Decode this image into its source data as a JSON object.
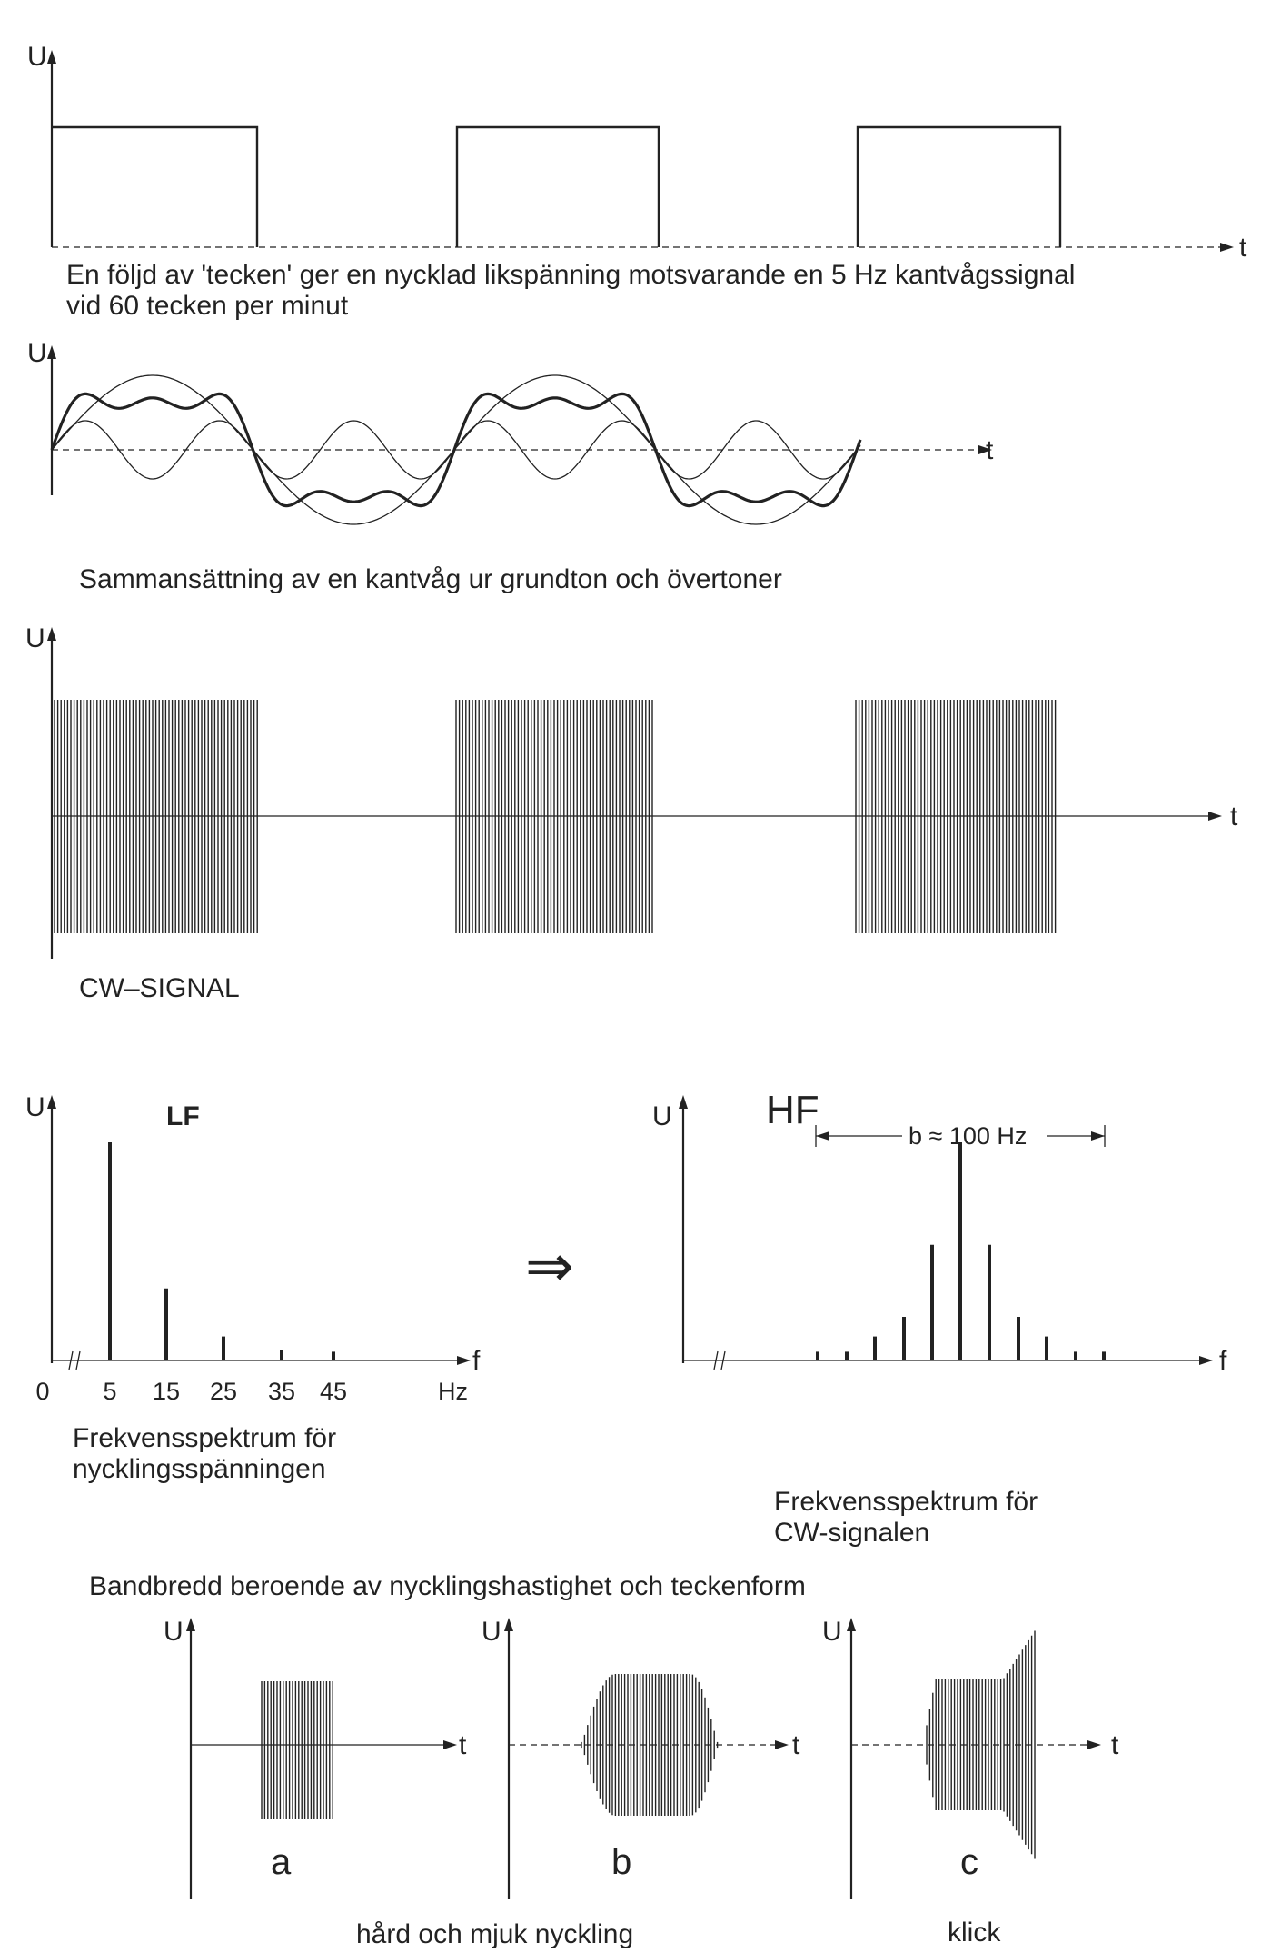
{
  "axis_labels": {
    "u": "U",
    "t": "t",
    "f": "f",
    "hz": "Hz"
  },
  "panel1": {
    "caption_line1": "En följd av  'tecken'  ger en nycklad likspänning motsvarande en 5 Hz kantvågssignal",
    "caption_line2": "vid 60 tecken per minut"
  },
  "panel2": {
    "caption": "Sammansättning av en kantvåg ur grundton och övertoner"
  },
  "panel3": {
    "caption": "CW–SIGNAL"
  },
  "panel4": {
    "lf_label": "LF",
    "hf_label": "HF",
    "bandwidth_label": "b ≈ 100 Hz",
    "arrow_symbol": "⇒",
    "lf_caption_line1": "Frekvensspektrum för",
    "lf_caption_line2": "nycklingsspänningen",
    "hf_caption_line1": "Frekvensspektrum för",
    "hf_caption_line2": "CW-signalen",
    "lf_ticks": [
      "0",
      "5",
      "15",
      "25",
      "35",
      "45"
    ]
  },
  "panel5": {
    "title": "Bandbredd beroende av nycklingshastighet och teckenform",
    "label_a": "a",
    "label_b": "b",
    "label_c": "c",
    "caption_soft": "hård och mjuk nyckling",
    "caption_click": "klick"
  },
  "chart_data": [
    {
      "type": "bar",
      "name": "LF",
      "categories": [
        "5",
        "15",
        "25",
        "35",
        "45"
      ],
      "values": [
        1.0,
        0.33,
        0.11,
        0.05,
        0.04
      ],
      "xlabel": "Hz",
      "ylabel": "U"
    },
    {
      "type": "bar",
      "name": "HF",
      "values": [
        0.04,
        0.04,
        0.11,
        0.2,
        0.53,
        1.0,
        0.53,
        0.2,
        0.11,
        0.04,
        0.04
      ],
      "ylabel": "U",
      "annotation": "b ≈ 100 Hz"
    }
  ]
}
